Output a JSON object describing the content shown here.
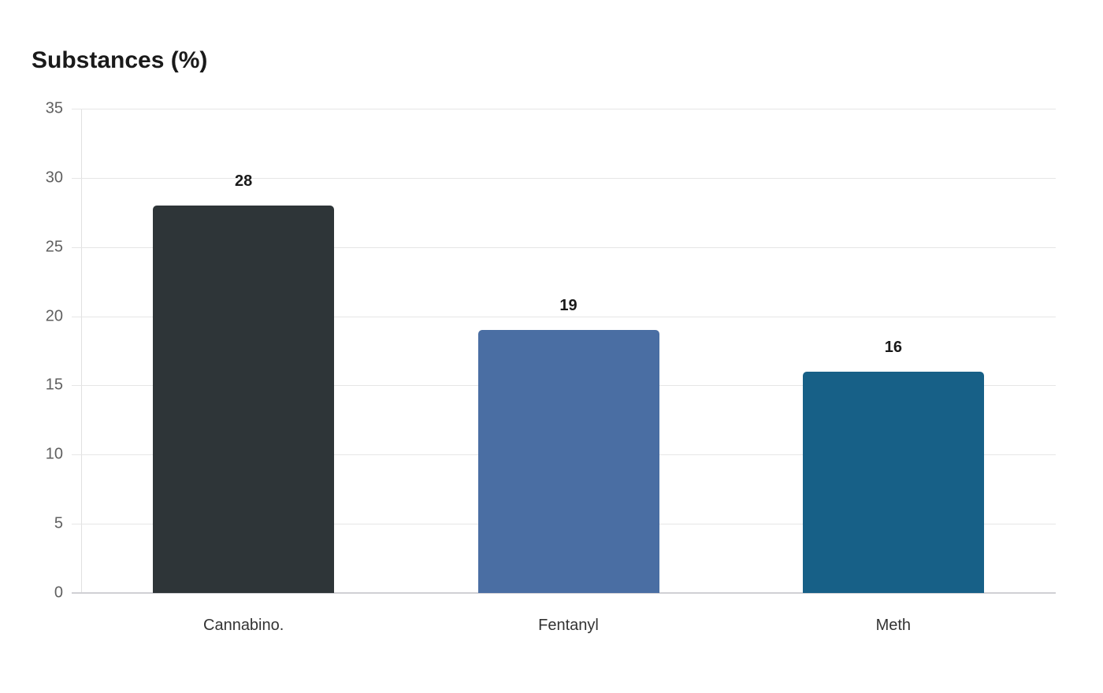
{
  "chart_data": {
    "type": "bar",
    "title": "Substances (%)",
    "categories": [
      "Cannabino.",
      "Fentanyl",
      "Meth"
    ],
    "values": [
      28,
      19,
      16
    ],
    "colors": [
      "#2e3538",
      "#4a6ea3",
      "#176087"
    ],
    "xlabel": "",
    "ylabel": "",
    "ylim": [
      0,
      35
    ],
    "yticks": [
      0,
      5,
      10,
      15,
      20,
      25,
      30,
      35
    ],
    "grid": true,
    "legend": "none",
    "data_labels": [
      "28",
      "19",
      "16"
    ]
  }
}
